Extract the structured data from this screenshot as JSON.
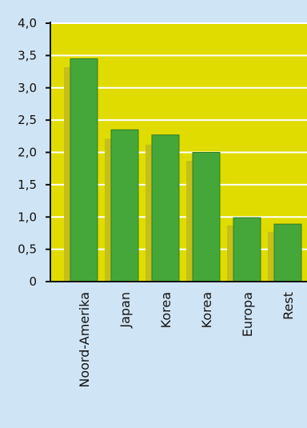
{
  "chart_data": {
    "type": "bar",
    "categories": [
      "Noord-Amerika",
      "Japan",
      "Korea",
      "Korea",
      "Europa",
      "Rest"
    ],
    "values": [
      3.45,
      2.35,
      2.27,
      2.0,
      0.99,
      0.89
    ],
    "shadow_values": [
      3.32,
      2.21,
      2.12,
      1.87,
      0.87,
      0.77
    ],
    "yticks": [
      "0",
      "0,5",
      "1,0",
      "1,5",
      "2,0",
      "2,5",
      "3,0",
      "3,5",
      "4,0"
    ],
    "ylim": [
      0,
      4.0
    ],
    "grid": true,
    "colors": {
      "plot_background": "#e0dc00",
      "bar": "#45a63a",
      "bar_stroke": "#2f7d28",
      "bar_shadow": "#c6bf18",
      "grid": "#ffffff",
      "axis": "#111111"
    }
  }
}
